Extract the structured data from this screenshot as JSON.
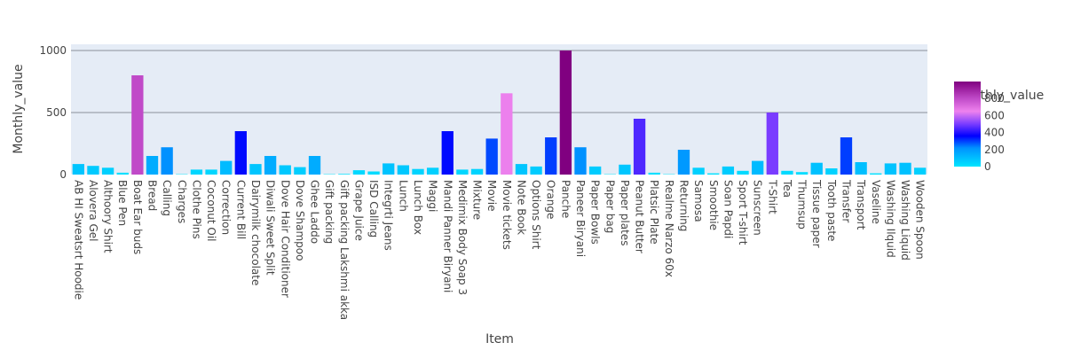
{
  "chart_data": {
    "type": "bar",
    "xlabel": "Item",
    "ylabel": "Monthly_value",
    "ylim": [
      0,
      1050
    ],
    "yticks": [
      0,
      500,
      1000
    ],
    "grid": true,
    "categories": [
      "AB HI Sweatsrt Hoodie",
      "Alovera Gel",
      "Althoory Shirt",
      "Blue Pen",
      "Boat Ear buds",
      "Bread",
      "Calling",
      "Charges",
      "Clothe Pins",
      "Coconut Oil",
      "Correction",
      "Current Bill",
      "Dairymilk chocolate",
      "Diwali Sweet Split",
      "Dove Hair Conditioner",
      "Dove Shampoo",
      "Ghee Laddo",
      "Gift packing",
      "Gift packing Lakshmi akka",
      "Grape Juice",
      "ISD Calling",
      "Integrti Jeans",
      "Lunch",
      "Lunch Box",
      "Maggi",
      "Mandi Panner Biryani",
      "Medimix Body Soap 3",
      "Mixture",
      "Movie",
      "Movie tickets",
      "Note Book",
      "Options Shirt",
      "Orange",
      "Panche",
      "Paneer Biryani",
      "Paper Bowls",
      "Paper bag",
      "Paper plates",
      "Peanut Butter",
      "Platsic Plate",
      "Realme Narzo 60x",
      "Returning",
      "Samosa",
      "Smoothie",
      "Soan Papdi",
      "Sport T-shirt",
      "Sunscreen",
      "T-Shirt",
      "Tea",
      "Thumsup",
      "Tissue paper",
      "Tooth paste",
      "Transfer",
      "Transport",
      "Vaseline",
      "Washing Ilquid",
      "Washing Liquid",
      "Wooden Spoon"
    ],
    "values": [
      85,
      70,
      55,
      15,
      800,
      150,
      220,
      3,
      40,
      40,
      110,
      350,
      85,
      150,
      75,
      60,
      150,
      3,
      5,
      35,
      25,
      90,
      75,
      45,
      55,
      350,
      40,
      45,
      290,
      655,
      85,
      65,
      300,
      1000,
      220,
      65,
      3,
      80,
      450,
      15,
      3,
      200,
      55,
      10,
      65,
      30,
      110,
      500,
      30,
      20,
      95,
      50,
      300,
      100,
      10,
      90,
      95,
      55
    ],
    "colorscale": {
      "title": "Monthly_value",
      "min": 0,
      "max": 1000,
      "ticks": [
        0,
        200,
        400,
        600,
        800
      ],
      "stops": [
        [
          0.0,
          "#00e5ff"
        ],
        [
          0.22,
          "#0091ff"
        ],
        [
          0.36,
          "#0000ff"
        ],
        [
          0.5,
          "#7a3cff"
        ],
        [
          0.65,
          "#ee82ee"
        ],
        [
          0.8,
          "#c04ac8"
        ],
        [
          1.0,
          "#800080"
        ]
      ]
    }
  }
}
